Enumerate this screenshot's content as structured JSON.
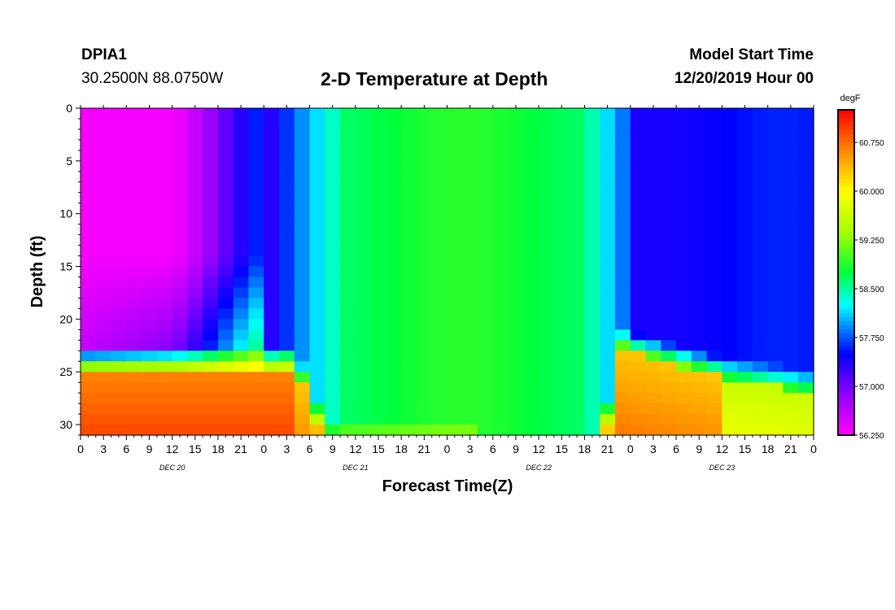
{
  "header": {
    "station": "DPIA1",
    "coords": "30.2500N 88.0750W",
    "title": "2-D Temperature at Depth",
    "model_start_label": "Model Start Time",
    "model_start_value": "12/20/2019 Hour 00"
  },
  "chart_data": {
    "type": "heatmap",
    "title": "2-D Temperature at Depth",
    "xlabel": "Forecast Time(Z)",
    "ylabel": "Depth (ft)",
    "x_range_hours": [
      0,
      96
    ],
    "x_tick_labels": [
      "0",
      "3",
      "6",
      "9",
      "12",
      "15",
      "18",
      "21",
      "0",
      "3",
      "6",
      "9",
      "12",
      "15",
      "18",
      "21",
      "0",
      "3",
      "6",
      "9",
      "12",
      "15",
      "18",
      "21",
      "0",
      "3",
      "6",
      "9",
      "12",
      "15",
      "18",
      "21",
      "0"
    ],
    "x_tick_step_hours": 3,
    "day_labels": [
      {
        "label": "DEC 20",
        "hour": 12
      },
      {
        "label": "DEC 21",
        "hour": 36
      },
      {
        "label": "DEC 22",
        "hour": 60
      },
      {
        "label": "DEC 23",
        "hour": 84
      }
    ],
    "y_range_ft": [
      0,
      31
    ],
    "y_ticks": [
      0,
      5,
      10,
      15,
      20,
      25,
      30
    ],
    "y_tick_labels": [
      "0",
      "5",
      "10",
      "15",
      "20",
      "25",
      "30"
    ],
    "colorbar": {
      "units": "degF",
      "min": 56.25,
      "max": 61.25,
      "tick_values": [
        56.25,
        57.0,
        57.75,
        58.5,
        59.25,
        60.0,
        60.75
      ],
      "tick_labels": [
        "56.250",
        "57.000",
        "57.750",
        "58.500",
        "59.250",
        "60.000",
        "60.750"
      ]
    },
    "field_description": "Temperature (degF) by forecast hour (x) and depth (y); cold magenta/purple upper water on Dec 20, warm red bottom layer below ~24 ft, green/cyan mixed water Dec 21-22, warm bottom layer returning Dec 22-23 with blue upper water on Dec 23."
  }
}
